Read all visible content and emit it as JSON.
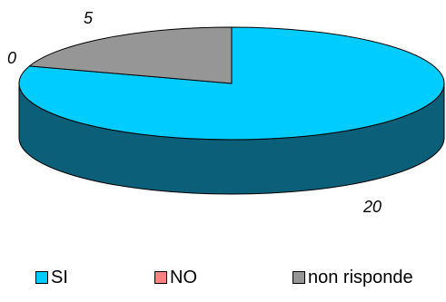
{
  "chart_data": {
    "type": "pie",
    "style": "3d",
    "slices": [
      {
        "label": "SI",
        "value": 20,
        "color": "#00ccff",
        "side_color": "#0b5f78"
      },
      {
        "label": "NO",
        "value": 0,
        "color": "#ff8080",
        "side_color": "#8f4848"
      },
      {
        "label": "non risponde",
        "value": 5,
        "color": "#969696",
        "side_color": "#5a5a5a"
      }
    ],
    "data_labels": [
      "20",
      "0",
      "5"
    ],
    "legend_position": "bottom"
  }
}
